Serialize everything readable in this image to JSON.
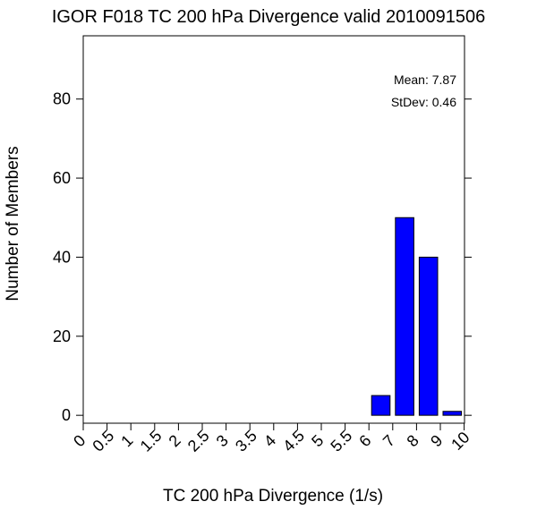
{
  "chart_data": {
    "type": "bar",
    "title": "IGOR F018 TC 200 hPa Divergence valid 2010091506",
    "xlabel": "TC 200 hPa Divergence (1/s)",
    "ylabel": "Number of Members",
    "x_tick_labels": [
      "0",
      "0.5",
      "1",
      "1.5",
      "2",
      "2.5",
      "3",
      "3.5",
      "4",
      "4.5",
      "5",
      "5.5",
      "6",
      "7",
      "8",
      "9",
      "10"
    ],
    "y_ticks": [
      0,
      20,
      40,
      60,
      80
    ],
    "y_tick_labels": [
      "0",
      "20",
      "40",
      "60",
      "80"
    ],
    "ylim": [
      -2,
      96
    ],
    "bars": [
      {
        "bin": "6-7",
        "bin_start_label": "6",
        "bin_end_label": "7",
        "value": 5
      },
      {
        "bin": "7-8",
        "bin_start_label": "7",
        "bin_end_label": "8",
        "value": 50
      },
      {
        "bin": "8-9",
        "bin_start_label": "8",
        "bin_end_label": "9",
        "value": 40
      },
      {
        "bin": "9-10",
        "bin_start_label": "9",
        "bin_end_label": "10",
        "value": 1
      }
    ],
    "bar_color": "#0000ff",
    "annotations": {
      "mean": "Mean: 7.87",
      "stdev": "StDev: 0.46"
    },
    "grid": false
  }
}
